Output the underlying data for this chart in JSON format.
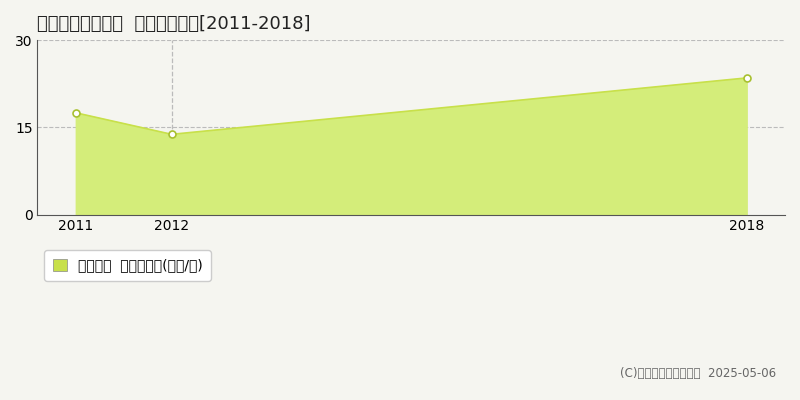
{
  "title": "新潟市中央区栄町  土地価格推移[2011-2018]",
  "years": [
    2011,
    2012,
    2018
  ],
  "values": [
    17.5,
    13.8,
    23.5
  ],
  "line_color": "#c8e04a",
  "fill_color": "#d4ed7a",
  "fill_alpha": 1.0,
  "marker_color": "#ffffff",
  "marker_edge_color": "#a8c030",
  "ylim": [
    0,
    30
  ],
  "yticks": [
    0,
    15,
    30
  ],
  "grid_color": "#bbbbbb",
  "bg_color": "#f5f5f0",
  "plot_bg_color": "#f5f5f0",
  "legend_label": "土地価格  平均坪単価(万円/坪)",
  "copyright_text": "(C)土地価格ドットコム  2025-05-06",
  "dashed_x": [
    2012
  ],
  "title_fontsize": 13,
  "tick_fontsize": 10,
  "legend_fontsize": 10
}
